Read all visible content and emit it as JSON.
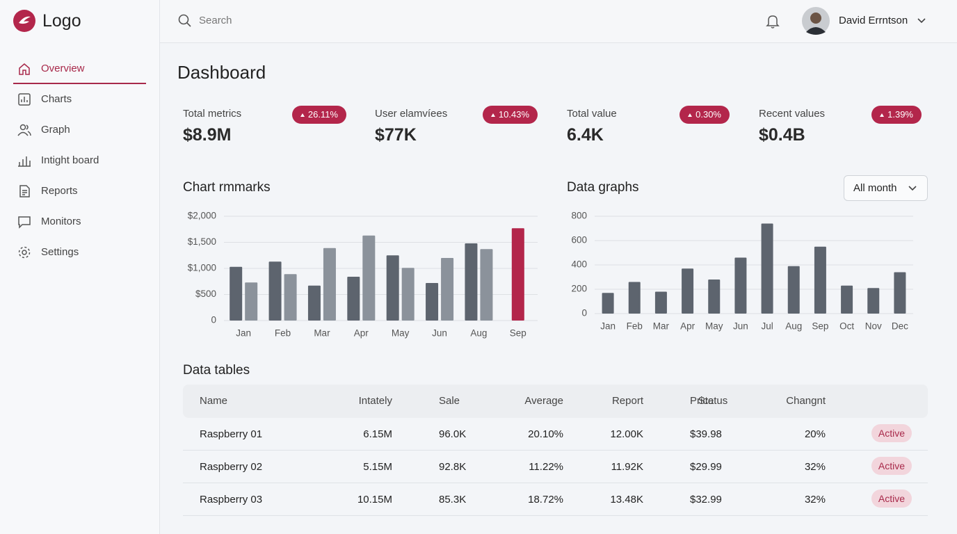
{
  "logo": "Logo",
  "nav": [
    "Overview",
    "Charts",
    "Graph",
    "Intight board",
    "Reports",
    "Monitors",
    "Settings"
  ],
  "header": {
    "search_placeholder": "Search",
    "user_name": "David Errntson"
  },
  "page_title": "Dashboard",
  "metrics": [
    {
      "label": "Total metrics",
      "value": "$8.9M",
      "change": "26.11%"
    },
    {
      "label": "User elamvíees",
      "value": "$77K",
      "change": "10.43%"
    },
    {
      "label": "Total value",
      "value": "6.4K",
      "change": "0.30%"
    },
    {
      "label": "Recent values",
      "value": "$0.4B",
      "change": "1.39%"
    }
  ],
  "chart_data": [
    {
      "type": "bar",
      "title": "Chart rmmarks",
      "categories": [
        "Jan",
        "Feb",
        "Mar",
        "Apr",
        "May",
        "Jun",
        "Aug",
        "Sep"
      ],
      "series": [
        {
          "color": "#5d646e",
          "colors": [
            "#5d646e",
            "#5d646e",
            "#5d646e",
            "#5d646e",
            "#5d646e",
            "#5d646e",
            "#5d646e",
            "#b3264b"
          ],
          "values": [
            1030,
            1130,
            670,
            840,
            1250,
            720,
            1480,
            1770
          ]
        },
        {
          "color": "#8b929b",
          "values": [
            730,
            890,
            1390,
            1630,
            1010,
            1200,
            1370,
            null
          ]
        }
      ],
      "ylim": [
        0,
        2000
      ],
      "yticks": [
        0,
        {
          "value": 500,
          "label": "$500"
        },
        {
          "value": 1000,
          "label": "$1,000"
        },
        {
          "value": 1500,
          "label": "$1,500"
        },
        {
          "value": 2000,
          "label": "$2,000"
        }
      ],
      "grid": true
    },
    {
      "type": "bar",
      "title": "Data graphs",
      "filter": "All month",
      "categories": [
        "Jan",
        "Feb",
        "Mar",
        "Apr",
        "May",
        "Jun",
        "Jul",
        "Aug",
        "Sep",
        "Oct",
        "Nov",
        "Dec"
      ],
      "series": [
        {
          "color": "#5d646e",
          "values": [
            170,
            260,
            180,
            370,
            280,
            460,
            740,
            390,
            550,
            230,
            210,
            340
          ]
        }
      ],
      "ylim": [
        0,
        800
      ],
      "yticks": [
        0,
        200,
        400,
        600,
        800
      ],
      "grid": true
    }
  ],
  "table": {
    "title": "Data tables",
    "columns": [
      "Name",
      "Intately",
      "Sale",
      "Average",
      "Report",
      "Price",
      "Changnt",
      "Status"
    ],
    "rows": [
      [
        "Raspberry 01",
        "6.15M",
        "96.0K",
        "20.10%",
        "12.00K",
        "$39.98",
        "20%",
        "Active"
      ],
      [
        "Raspberry 02",
        "5.15M",
        "92.8K",
        "11.22%",
        "11.92K",
        "$29.99",
        "32%",
        "Active"
      ],
      [
        "Raspberry 03",
        "10.15M",
        "85.3K",
        "18.72%",
        "13.48K",
        "$32.99",
        "32%",
        "Active"
      ]
    ]
  }
}
